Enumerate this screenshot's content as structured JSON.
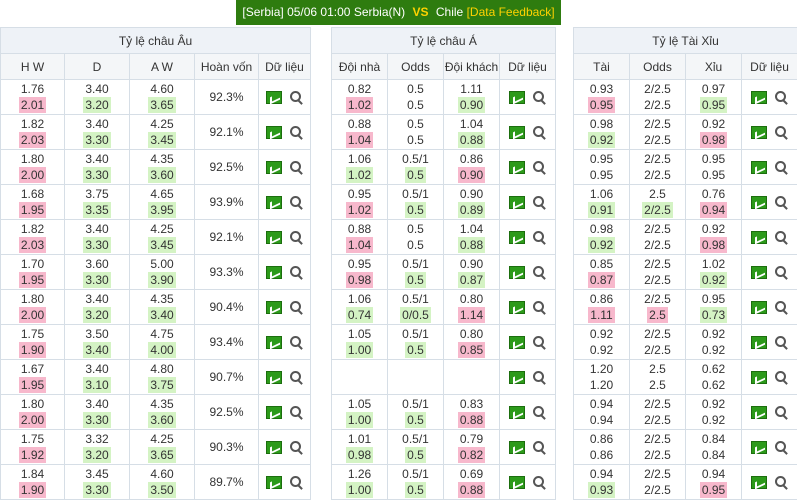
{
  "topbar": {
    "league": "[Serbia]",
    "datetime": "05/06 01:00",
    "home": "Serbia(N)",
    "vs": "VS",
    "away": "Chile",
    "feedback": "[Data Feedback]"
  },
  "panels": [
    {
      "title": "Tỷ lệ châu Âu",
      "headers": [
        "H W",
        "D",
        "A W",
        "Hoàn vốn",
        "Dữ liệu"
      ],
      "rows": [
        {
          "c1": [
            "1.76",
            "2.01",
            "p"
          ],
          "c2": [
            "3.40",
            "3.20",
            "g"
          ],
          "c3": [
            "4.60",
            "3.65",
            "g"
          ],
          "extra": "92.3%"
        },
        {
          "c1": [
            "1.82",
            "2.03",
            "p"
          ],
          "c2": [
            "3.40",
            "3.30",
            "g"
          ],
          "c3": [
            "4.25",
            "3.45",
            "g"
          ],
          "extra": "92.1%"
        },
        {
          "c1": [
            "1.80",
            "2.00",
            "p"
          ],
          "c2": [
            "3.40",
            "3.30",
            "g"
          ],
          "c3": [
            "4.35",
            "3.60",
            "g"
          ],
          "extra": "92.5%"
        },
        {
          "c1": [
            "1.68",
            "1.95",
            "p"
          ],
          "c2": [
            "3.75",
            "3.35",
            "g"
          ],
          "c3": [
            "4.65",
            "3.95",
            "g"
          ],
          "extra": "93.9%"
        },
        {
          "c1": [
            "1.82",
            "2.03",
            "p"
          ],
          "c2": [
            "3.40",
            "3.30",
            "g"
          ],
          "c3": [
            "4.25",
            "3.45",
            "g"
          ],
          "extra": "92.1%"
        },
        {
          "c1": [
            "1.70",
            "1.95",
            "p"
          ],
          "c2": [
            "3.60",
            "3.30",
            "g"
          ],
          "c3": [
            "5.00",
            "3.90",
            "g"
          ],
          "extra": "93.3%"
        },
        {
          "c1": [
            "1.80",
            "2.00",
            "p"
          ],
          "c2": [
            "3.40",
            "3.20",
            "g"
          ],
          "c3": [
            "4.35",
            "3.40",
            "g"
          ],
          "extra": "90.4%"
        },
        {
          "c1": [
            "1.75",
            "1.90",
            "p"
          ],
          "c2": [
            "3.50",
            "3.40",
            "g"
          ],
          "c3": [
            "4.75",
            "4.00",
            "g"
          ],
          "extra": "93.4%"
        },
        {
          "c1": [
            "1.67",
            "1.95",
            "p"
          ],
          "c2": [
            "3.40",
            "3.10",
            "g"
          ],
          "c3": [
            "4.80",
            "3.75",
            "g"
          ],
          "extra": "90.7%"
        },
        {
          "c1": [
            "1.80",
            "2.00",
            "p"
          ],
          "c2": [
            "3.40",
            "3.30",
            "g"
          ],
          "c3": [
            "4.35",
            "3.60",
            "g"
          ],
          "extra": "92.5%"
        },
        {
          "c1": [
            "1.75",
            "1.92",
            "p"
          ],
          "c2": [
            "3.32",
            "3.20",
            "g"
          ],
          "c3": [
            "4.25",
            "3.65",
            "g"
          ],
          "extra": "90.3%"
        },
        {
          "c1": [
            "1.84",
            "1.90",
            "p"
          ],
          "c2": [
            "3.45",
            "3.30",
            "g"
          ],
          "c3": [
            "4.60",
            "3.50",
            "g"
          ],
          "extra": "89.7%"
        }
      ]
    },
    {
      "title": "Tỷ lệ châu Á",
      "headers": [
        "Đội nhà",
        "Odds",
        "Đội khách",
        "Dữ liệu"
      ],
      "rows": [
        {
          "c1": [
            "0.82",
            "1.02",
            "p"
          ],
          "c2": [
            "0.5",
            "0.5",
            ""
          ],
          "c3": [
            "1.11",
            "0.90",
            "g"
          ],
          "extra": ""
        },
        {
          "c1": [
            "0.88",
            "1.04",
            "p"
          ],
          "c2": [
            "0.5",
            "0.5",
            ""
          ],
          "c3": [
            "1.04",
            "0.88",
            "g"
          ],
          "extra": ""
        },
        {
          "c1": [
            "1.06",
            "1.02",
            "g"
          ],
          "c2": [
            "0.5/1",
            "0.5",
            "g"
          ],
          "c3": [
            "0.86",
            "0.90",
            "p"
          ],
          "extra": ""
        },
        {
          "c1": [
            "0.95",
            "1.02",
            "p"
          ],
          "c2": [
            "0.5/1",
            "0.5",
            "g"
          ],
          "c3": [
            "0.90",
            "0.89",
            "g"
          ],
          "extra": ""
        },
        {
          "c1": [
            "0.88",
            "1.04",
            "p"
          ],
          "c2": [
            "0.5",
            "0.5",
            ""
          ],
          "c3": [
            "1.04",
            "0.88",
            "g"
          ],
          "extra": ""
        },
        {
          "c1": [
            "0.95",
            "0.98",
            "p"
          ],
          "c2": [
            "0.5/1",
            "0.5",
            "g"
          ],
          "c3": [
            "0.90",
            "0.87",
            "g"
          ],
          "extra": ""
        },
        {
          "c1": [
            "1.06",
            "0.74",
            "g"
          ],
          "c2": [
            "0.5/1",
            "0/0.5",
            "g"
          ],
          "c3": [
            "0.80",
            "1.14",
            "p"
          ],
          "extra": ""
        },
        {
          "c1": [
            "1.05",
            "1.00",
            "g"
          ],
          "c2": [
            "0.5/1",
            "0.5",
            "g"
          ],
          "c3": [
            "0.80",
            "0.85",
            "p"
          ],
          "extra": ""
        },
        {
          "empty": true
        },
        {
          "c1": [
            "1.05",
            "1.00",
            "g"
          ],
          "c2": [
            "0.5/1",
            "0.5",
            "g"
          ],
          "c3": [
            "0.83",
            "0.88",
            "p"
          ],
          "extra": ""
        },
        {
          "c1": [
            "1.01",
            "0.98",
            "g"
          ],
          "c2": [
            "0.5/1",
            "0.5",
            "g"
          ],
          "c3": [
            "0.79",
            "0.82",
            "p"
          ],
          "extra": ""
        },
        {
          "c1": [
            "1.26",
            "1.00",
            "g"
          ],
          "c2": [
            "0.5/1",
            "0.5",
            "g"
          ],
          "c3": [
            "0.69",
            "0.88",
            "p"
          ],
          "extra": ""
        }
      ]
    },
    {
      "title": "Tỷ lệ Tài Xỉu",
      "headers": [
        "Tài",
        "Odds",
        "Xỉu",
        "Dữ liệu"
      ],
      "rows": [
        {
          "c1": [
            "0.93",
            "0.95",
            "p"
          ],
          "c2": [
            "2/2.5",
            "2/2.5",
            ""
          ],
          "c3": [
            "0.97",
            "0.95",
            "g"
          ],
          "extra": ""
        },
        {
          "c1": [
            "0.98",
            "0.92",
            "g"
          ],
          "c2": [
            "2/2.5",
            "2/2.5",
            ""
          ],
          "c3": [
            "0.92",
            "0.98",
            "p"
          ],
          "extra": ""
        },
        {
          "c1": [
            "0.95",
            "0.95",
            ""
          ],
          "c2": [
            "2/2.5",
            "2/2.5",
            ""
          ],
          "c3": [
            "0.95",
            "0.95",
            ""
          ],
          "extra": ""
        },
        {
          "c1": [
            "1.06",
            "0.91",
            "g"
          ],
          "c2": [
            "2.5",
            "2/2.5",
            "g"
          ],
          "c3": [
            "0.76",
            "0.94",
            "p"
          ],
          "extra": ""
        },
        {
          "c1": [
            "0.98",
            "0.92",
            "g"
          ],
          "c2": [
            "2/2.5",
            "2/2.5",
            ""
          ],
          "c3": [
            "0.92",
            "0.98",
            "p"
          ],
          "extra": ""
        },
        {
          "c1": [
            "0.85",
            "0.87",
            "p"
          ],
          "c2": [
            "2/2.5",
            "2/2.5",
            ""
          ],
          "c3": [
            "1.02",
            "0.92",
            "g"
          ],
          "extra": ""
        },
        {
          "c1": [
            "0.86",
            "1.11",
            "p"
          ],
          "c2": [
            "2/2.5",
            "2.5",
            "p"
          ],
          "c3": [
            "0.95",
            "0.73",
            "g"
          ],
          "extra": ""
        },
        {
          "c1": [
            "0.92",
            "0.92",
            ""
          ],
          "c2": [
            "2/2.5",
            "2/2.5",
            ""
          ],
          "c3": [
            "0.92",
            "0.92",
            ""
          ],
          "extra": ""
        },
        {
          "c1": [
            "1.20",
            "1.20",
            ""
          ],
          "c2": [
            "2.5",
            "2.5",
            ""
          ],
          "c3": [
            "0.62",
            "0.62",
            ""
          ],
          "extra": ""
        },
        {
          "c1": [
            "0.94",
            "0.94",
            ""
          ],
          "c2": [
            "2/2.5",
            "2/2.5",
            ""
          ],
          "c3": [
            "0.92",
            "0.92",
            ""
          ],
          "extra": ""
        },
        {
          "c1": [
            "0.86",
            "0.86",
            ""
          ],
          "c2": [
            "2/2.5",
            "2/2.5",
            ""
          ],
          "c3": [
            "0.84",
            "0.84",
            ""
          ],
          "extra": ""
        },
        {
          "c1": [
            "0.94",
            "0.93",
            "g"
          ],
          "c2": [
            "2/2.5",
            "2/2.5",
            ""
          ],
          "c3": [
            "0.94",
            "0.95",
            "p"
          ],
          "extra": ""
        }
      ]
    }
  ],
  "icons": {
    "chart": "line-chart-icon",
    "search": "magnifier-icon"
  },
  "colors": {
    "header_bar": "#2e7c0f",
    "drop_highlight": "#f7b8cc",
    "rise_highlight": "#d4f3c4"
  }
}
